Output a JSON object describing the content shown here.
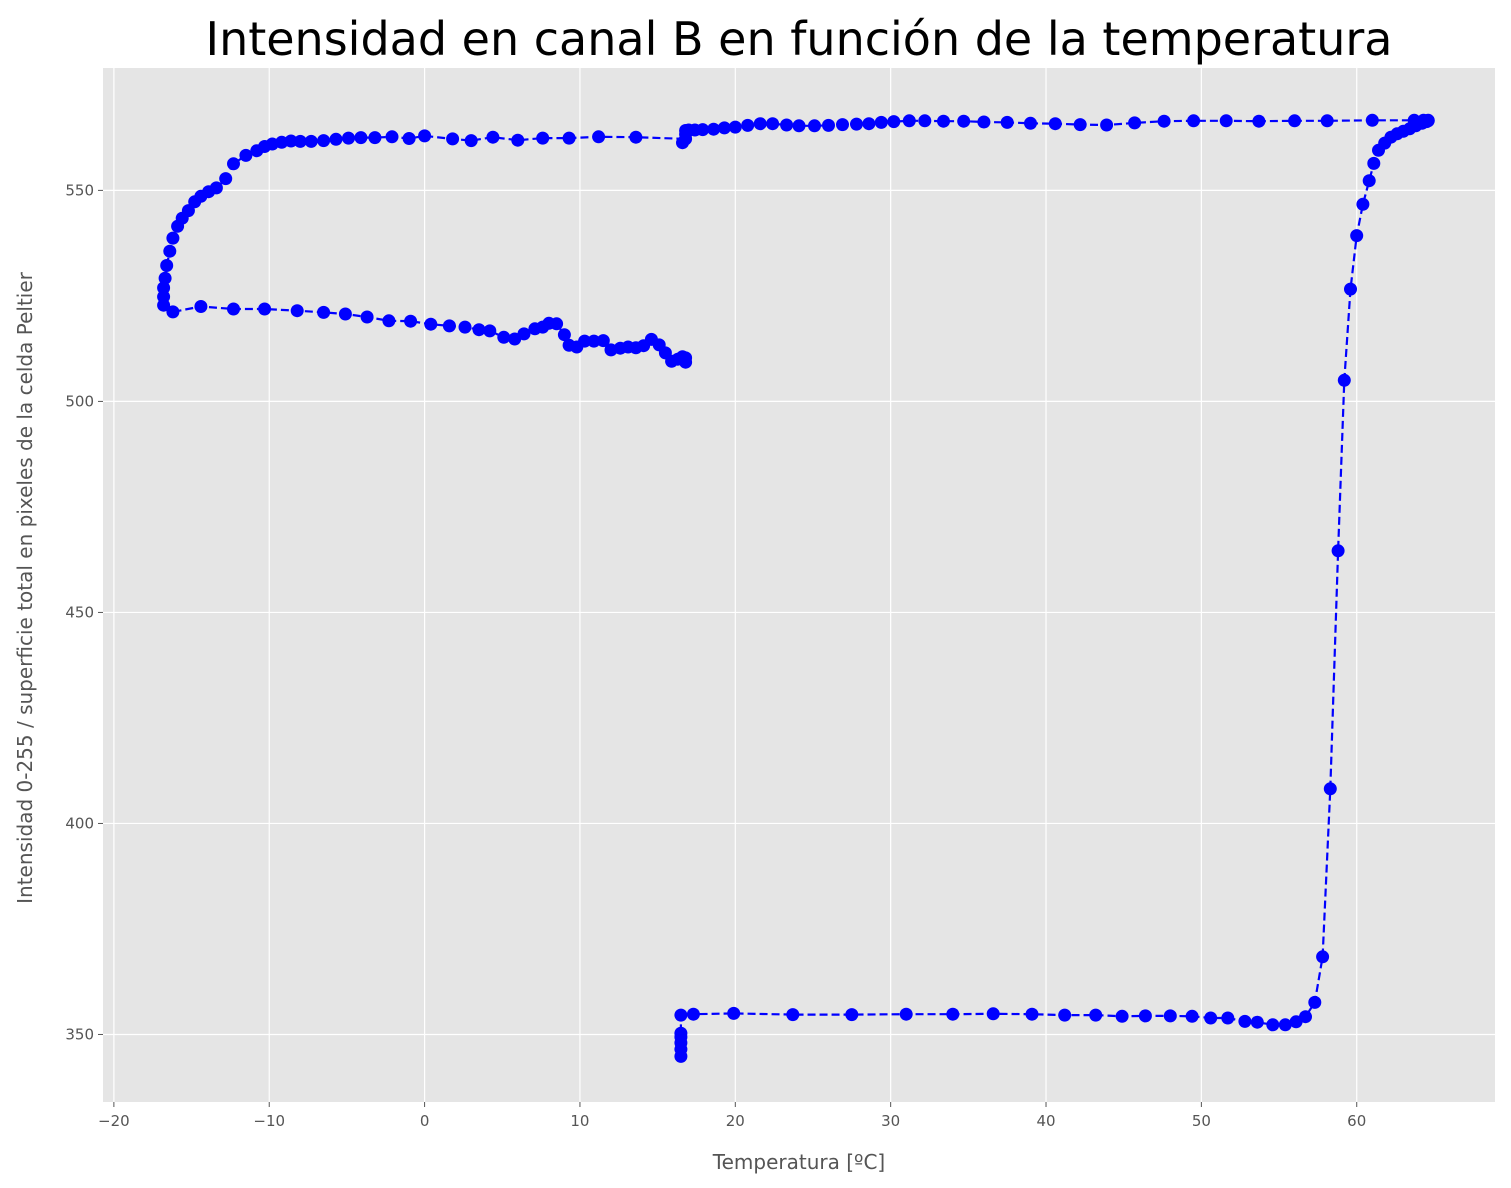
{
  "chart_data": {
    "type": "line",
    "title": "Intensidad en canal B en función de la temperatura",
    "xlabel": "Temperatura [ºC]",
    "ylabel": "Intensidad 0-255 / superficie total en pixeles de la celda Peltier",
    "xlim": [
      -20.7,
      68.9
    ],
    "ylim": [
      334,
      579
    ],
    "xticks": [
      -20,
      -10,
      0,
      10,
      20,
      30,
      40,
      50,
      60
    ],
    "xtick_labels": [
      "−20",
      "−10",
      "0",
      "10",
      "20",
      "30",
      "40",
      "50",
      "60"
    ],
    "yticks": [
      350,
      400,
      450,
      500,
      550
    ],
    "ytick_labels": [
      "350",
      "400",
      "450",
      "500",
      "550"
    ],
    "grid": true,
    "background": "#e5e5e5",
    "grid_color": "#ffffff",
    "series": [
      {
        "color": "#0000ff",
        "line_style": "dashed",
        "marker": "circle",
        "x": [
          16.5,
          16.5,
          16.5,
          16.5,
          16.5,
          16.5,
          17.3,
          19.9,
          23.7,
          27.5,
          31.0,
          34.0,
          36.6,
          39.1,
          41.2,
          43.2,
          44.9,
          46.4,
          48.0,
          49.4,
          50.6,
          51.7,
          52.8,
          53.6,
          54.6,
          55.4,
          56.1,
          56.7,
          57.3,
          57.8,
          58.3,
          58.8,
          59.2,
          59.6,
          60.0,
          60.4,
          60.8,
          61.1,
          61.4,
          61.8,
          62.2,
          62.6,
          63.0,
          63.4,
          63.8,
          64.2,
          64.5,
          64.6,
          64.6,
          64.3,
          63.7,
          61.0,
          58.1,
          56.0,
          53.7,
          51.6,
          49.5,
          47.6,
          45.7,
          43.9,
          42.2,
          40.6,
          39.0,
          37.5,
          36.0,
          34.7,
          33.4,
          32.2,
          31.2,
          30.2,
          29.4,
          28.6,
          27.8,
          26.9,
          26.0,
          25.1,
          24.1,
          23.3,
          22.4,
          21.6,
          20.8,
          20.0,
          19.3,
          18.6,
          17.9,
          17.4,
          17.0,
          16.8,
          16.8,
          16.6,
          16.8,
          13.6,
          11.2,
          9.3,
          7.6,
          6.0,
          4.4,
          3.0,
          1.8,
          0.0,
          -1.0,
          -2.1,
          -3.2,
          -4.1,
          -4.9,
          -5.7,
          -6.5,
          -7.3,
          -8.0,
          -8.6,
          -9.2,
          -9.8,
          -10.3,
          -10.8,
          -11.5,
          -12.3,
          -12.8,
          -13.4,
          -13.9,
          -14.4,
          -14.8,
          -15.2,
          -15.6,
          -15.9,
          -16.2,
          -16.4,
          -16.6,
          -16.7,
          -16.8,
          -16.8,
          -16.8,
          -16.2,
          -14.4,
          -12.3,
          -10.3,
          -8.2,
          -6.5,
          -5.1,
          -3.7,
          -2.3,
          -0.9,
          0.4,
          1.6,
          2.6,
          3.5,
          4.2,
          5.1,
          5.8,
          6.4,
          7.1,
          7.6,
          8.0,
          8.5,
          9.0,
          9.3,
          9.8,
          10.3,
          10.9,
          11.5,
          12.0,
          12.6,
          13.1,
          13.6,
          14.1,
          14.6,
          15.1,
          15.5,
          15.9,
          16.3,
          16.6,
          16.8,
          16.8
        ],
        "y": [
          344.8,
          346.5,
          348.0,
          349.4,
          350.3,
          354.6,
          354.8,
          355.0,
          354.7,
          354.7,
          354.8,
          354.8,
          354.9,
          354.8,
          354.6,
          354.6,
          354.3,
          354.4,
          354.4,
          354.3,
          353.9,
          353.9,
          353.1,
          352.9,
          352.3,
          352.3,
          353.0,
          354.2,
          357.6,
          368.4,
          408.2,
          464.6,
          505.0,
          526.6,
          539.3,
          546.7,
          552.3,
          556.4,
          559.5,
          561.2,
          562.6,
          563.4,
          564.0,
          564.6,
          565.3,
          565.9,
          566.3,
          566.6,
          566.5,
          566.6,
          566.6,
          566.6,
          566.5,
          566.5,
          566.4,
          566.5,
          566.5,
          566.4,
          566.0,
          565.5,
          565.6,
          565.8,
          565.9,
          566.1,
          566.2,
          566.4,
          566.4,
          566.5,
          566.5,
          566.3,
          566.1,
          565.8,
          565.7,
          565.6,
          565.4,
          565.3,
          565.3,
          565.5,
          565.8,
          565.8,
          565.4,
          565.0,
          564.8,
          564.5,
          564.4,
          564.3,
          564.3,
          564.2,
          563.3,
          561.3,
          562.2,
          562.6,
          562.7,
          562.4,
          562.4,
          561.9,
          562.6,
          561.8,
          562.2,
          562.9,
          562.3,
          562.7,
          562.5,
          562.5,
          562.4,
          562.1,
          561.8,
          561.6,
          561.6,
          561.7,
          561.4,
          561.0,
          560.4,
          559.4,
          558.3,
          556.3,
          552.8,
          550.6,
          549.7,
          548.6,
          547.3,
          545.2,
          543.4,
          541.5,
          538.7,
          535.6,
          532.2,
          529.2,
          526.9,
          524.8,
          522.8,
          521.2,
          522.5,
          521.9,
          521.9,
          521.5,
          521.1,
          520.7,
          520.0,
          519.1,
          519.0,
          518.3,
          517.9,
          517.6,
          517.0,
          516.7,
          515.2,
          514.8,
          516.0,
          517.2,
          517.6,
          518.5,
          518.4,
          515.8,
          513.3,
          512.9,
          514.3,
          514.3,
          514.4,
          512.2,
          512.6,
          512.9,
          512.7,
          513.2,
          514.7,
          513.4,
          511.5,
          509.5,
          510.0,
          510.6,
          510.3,
          509.3
        ]
      }
    ]
  }
}
